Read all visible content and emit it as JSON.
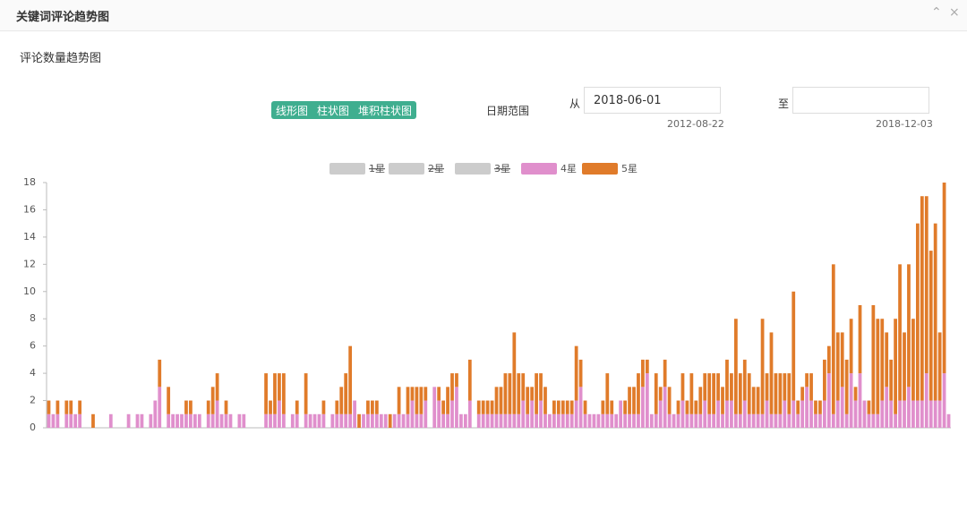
{
  "header": {
    "title": "关键词评论趋势图"
  },
  "panel": {
    "subtitle": "评论数量趋势图"
  },
  "controls": {
    "buttons": [
      "线形图",
      "柱状图",
      "堆积柱状图"
    ],
    "date_range_label": "日期范围",
    "from_label": "从",
    "from_value": "2018-06-01",
    "from_hint": "2012-08-22",
    "to_label": "至",
    "to_hint": "2018-12-03"
  },
  "chart_data": {
    "type": "stacked-bar",
    "grid": false,
    "ylim": [
      0,
      18
    ],
    "yticks": [
      0,
      2,
      4,
      6,
      8,
      10,
      12,
      14,
      16,
      18
    ],
    "categories": [
      null,
      null,
      null,
      null,
      null,
      null,
      null,
      null,
      null,
      null,
      null,
      null,
      null,
      null,
      null,
      null,
      null,
      null,
      null,
      null,
      null,
      null,
      null,
      null,
      null,
      null,
      null,
      null,
      null,
      null,
      null,
      null,
      null,
      null,
      null,
      null,
      null,
      null,
      null,
      null,
      null,
      null,
      null,
      null,
      null,
      null,
      null,
      null,
      null,
      null,
      null,
      null,
      null,
      null,
      null,
      null,
      null,
      null,
      null,
      null,
      null,
      null,
      null,
      null,
      null,
      null,
      null,
      null,
      null,
      null,
      null,
      null,
      null,
      null,
      null,
      null,
      null,
      null,
      null,
      null,
      null,
      null,
      null,
      null,
      null,
      null,
      null,
      null,
      null,
      null,
      null,
      null,
      null,
      null,
      null,
      null,
      null,
      null,
      null,
      null,
      null,
      null,
      null,
      null,
      null,
      null,
      null,
      null,
      null,
      null,
      null,
      null,
      null,
      null,
      null,
      null,
      null,
      null,
      null,
      null,
      null,
      null,
      null,
      null,
      null,
      null,
      null,
      null,
      null,
      null,
      null,
      null,
      null,
      null,
      null,
      null,
      null,
      null,
      null,
      null,
      null,
      null,
      null,
      null,
      null,
      null,
      null,
      null,
      null,
      null,
      null,
      null,
      null,
      null,
      null,
      null,
      null,
      null,
      null,
      null,
      null,
      null,
      null,
      null,
      null,
      null,
      null,
      null,
      null,
      null,
      null,
      null,
      null,
      null,
      null,
      null,
      null,
      null,
      null,
      null,
      null,
      null,
      null,
      null,
      null,
      null,
      null,
      null,
      null,
      null,
      null,
      null,
      null,
      null,
      null,
      null,
      null,
      null,
      null,
      null,
      null,
      null,
      null,
      null
    ],
    "series": [
      {
        "name": "1星",
        "color": "#c0504d",
        "visible": false
      },
      {
        "name": "2星",
        "color": "#4f81bd",
        "visible": false
      },
      {
        "name": "3星",
        "color": "#9bbb59",
        "visible": false
      },
      {
        "name": "4星",
        "color": "#e08fcc",
        "visible": true,
        "values": [
          1,
          1,
          1,
          0,
          1,
          1,
          1,
          1,
          0,
          0,
          0,
          0,
          0,
          0,
          1,
          0,
          0,
          0,
          1,
          0,
          1,
          1,
          0,
          1,
          2,
          3,
          0,
          1,
          1,
          1,
          1,
          1,
          1,
          1,
          1,
          0,
          1,
          1,
          2,
          1,
          1,
          1,
          0,
          1,
          1,
          0,
          0,
          0,
          0,
          1,
          1,
          1,
          2,
          1,
          0,
          1,
          1,
          0,
          1,
          1,
          1,
          1,
          1,
          0,
          1,
          1,
          1,
          1,
          1,
          2,
          0,
          1,
          1,
          1,
          1,
          1,
          1,
          0,
          1,
          1,
          1,
          1,
          2,
          1,
          1,
          2,
          0,
          3,
          2,
          1,
          1,
          2,
          3,
          1,
          1,
          2,
          0,
          1,
          1,
          1,
          1,
          1,
          1,
          1,
          1,
          1,
          1,
          2,
          1,
          2,
          1,
          2,
          1,
          1,
          1,
          1,
          1,
          1,
          1,
          2,
          3,
          1,
          1,
          1,
          1,
          1,
          1,
          1,
          1,
          2,
          1,
          1,
          1,
          1,
          3,
          4,
          1,
          1,
          2,
          3,
          1,
          1,
          1,
          2,
          1,
          1,
          1,
          1,
          2,
          1,
          1,
          2,
          1,
          2,
          2,
          1,
          1,
          2,
          1,
          1,
          1,
          1,
          2,
          1,
          1,
          1,
          2,
          1,
          2,
          1,
          2,
          3,
          2,
          1,
          1,
          2,
          4,
          1,
          2,
          3,
          1,
          4,
          2,
          4,
          2,
          1,
          1,
          1,
          2,
          3,
          2,
          1,
          2,
          2,
          3,
          2,
          2,
          2,
          4,
          2,
          2,
          2,
          4,
          1
        ]
      },
      {
        "name": "5星",
        "color": "#e07b2a",
        "visible": true,
        "values": [
          1,
          0,
          1,
          0,
          1,
          1,
          0,
          1,
          0,
          0,
          1,
          0,
          0,
          0,
          0,
          0,
          0,
          0,
          0,
          0,
          0,
          0,
          0,
          0,
          0,
          2,
          0,
          2,
          0,
          0,
          0,
          1,
          1,
          0,
          0,
          0,
          1,
          2,
          2,
          0,
          1,
          0,
          0,
          0,
          0,
          0,
          0,
          0,
          0,
          3,
          1,
          3,
          2,
          3,
          0,
          0,
          1,
          0,
          3,
          0,
          0,
          0,
          1,
          0,
          0,
          1,
          2,
          3,
          5,
          0,
          1,
          0,
          1,
          1,
          1,
          0,
          0,
          1,
          0,
          2,
          0,
          2,
          1,
          2,
          2,
          1,
          0,
          0,
          1,
          1,
          2,
          2,
          1,
          0,
          0,
          3,
          0,
          1,
          1,
          1,
          1,
          2,
          2,
          3,
          3,
          6,
          3,
          2,
          2,
          1,
          3,
          2,
          2,
          0,
          1,
          1,
          1,
          1,
          1,
          4,
          2,
          1,
          0,
          0,
          0,
          1,
          3,
          1,
          0,
          0,
          1,
          2,
          2,
          3,
          2,
          1,
          0,
          3,
          1,
          2,
          2,
          0,
          1,
          2,
          1,
          3,
          1,
          2,
          2,
          3,
          3,
          2,
          2,
          3,
          2,
          7,
          3,
          3,
          3,
          2,
          2,
          7,
          2,
          6,
          3,
          3,
          2,
          3,
          8,
          1,
          1,
          1,
          2,
          1,
          1,
          3,
          2,
          11,
          5,
          4,
          4,
          4,
          1,
          5,
          0,
          1,
          8,
          7,
          6,
          4,
          3,
          7,
          10,
          5,
          9,
          6,
          13,
          15,
          13,
          11,
          13,
          5,
          14,
          0
        ]
      }
    ]
  }
}
